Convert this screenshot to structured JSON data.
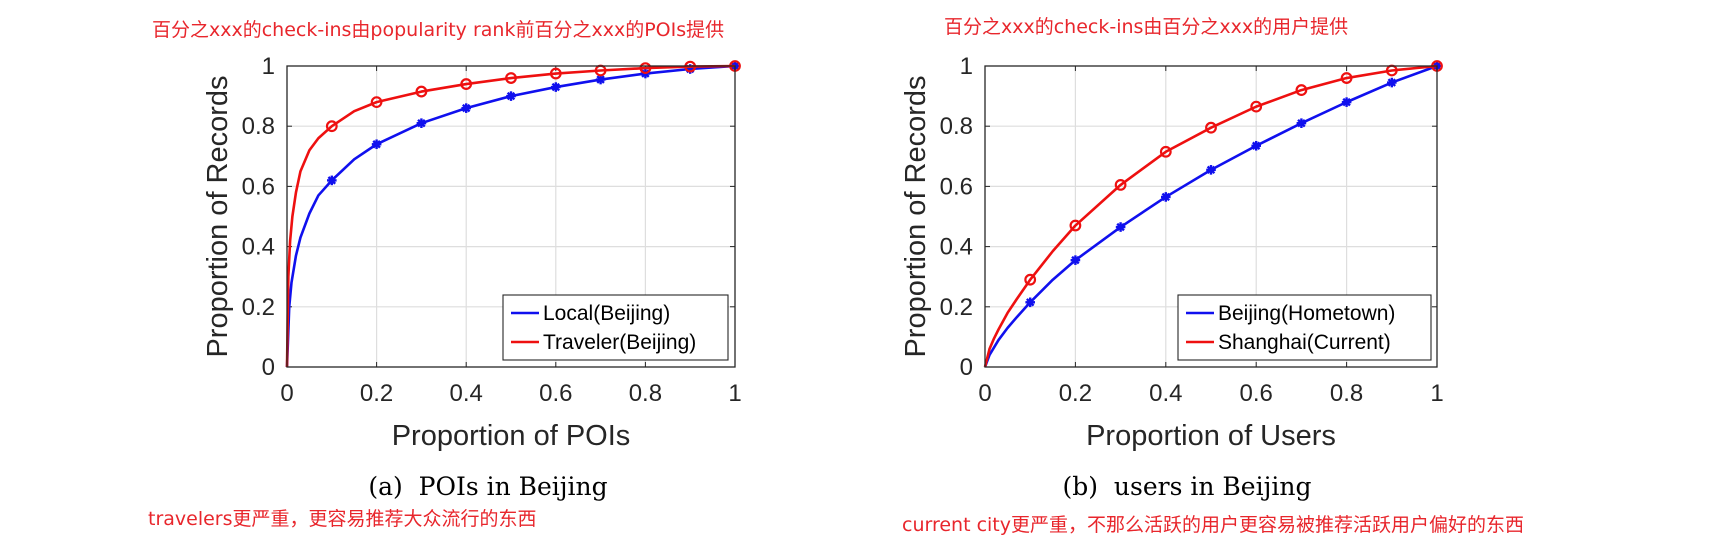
{
  "annotations": {
    "a_top": "百分之xxx的check-ins由popularity rank前百分之xxx的POIs提供",
    "a_bottom": "travelers更严重，更容易推荐大众流行的东西",
    "b_top": "百分之xxx的check-ins由百分之xxx的用户提供",
    "b_bottom": "current city更严重，不那么活跃的用户更容易被推荐活跃用户偏好的东西"
  },
  "chart_data": [
    {
      "type": "line",
      "caption": "(a)  POIs in Beijing",
      "xlabel": "Proportion of POIs",
      "ylabel": "Proportion of Records",
      "xlim": [
        0,
        1
      ],
      "ylim": [
        0,
        1
      ],
      "xticks": [
        0,
        0.2,
        0.4,
        0.6,
        0.8,
        1
      ],
      "yticks": [
        0,
        0.2,
        0.4,
        0.6,
        0.8,
        1
      ],
      "xtick_labels": [
        "0",
        "0.2",
        "0.4",
        "0.6",
        "0.8",
        "1"
      ],
      "ytick_labels": [
        "0",
        "0.2",
        "0.4",
        "0.6",
        "0.8",
        "1"
      ],
      "grid": true,
      "legend_position": "bottom-right",
      "series": [
        {
          "name": "Local(Beijing)",
          "color": "#1010ee",
          "marker": "asterisk",
          "x": [
            0,
            0.005,
            0.01,
            0.02,
            0.03,
            0.05,
            0.07,
            0.1,
            0.15,
            0.2,
            0.3,
            0.4,
            0.5,
            0.6,
            0.7,
            0.8,
            0.9,
            1.0
          ],
          "y": [
            0,
            0.2,
            0.28,
            0.37,
            0.43,
            0.51,
            0.57,
            0.62,
            0.69,
            0.74,
            0.81,
            0.86,
            0.9,
            0.93,
            0.955,
            0.975,
            0.99,
            1.0
          ],
          "marker_x": [
            0.1,
            0.2,
            0.3,
            0.4,
            0.5,
            0.6,
            0.7,
            0.8,
            0.9,
            1.0
          ]
        },
        {
          "name": "Traveler(Beijing)",
          "color": "#ee1010",
          "marker": "circle",
          "x": [
            0,
            0.003,
            0.007,
            0.012,
            0.02,
            0.03,
            0.05,
            0.07,
            0.1,
            0.15,
            0.2,
            0.3,
            0.4,
            0.5,
            0.6,
            0.7,
            0.8,
            0.9,
            1.0
          ],
          "y": [
            0,
            0.3,
            0.42,
            0.5,
            0.58,
            0.65,
            0.72,
            0.76,
            0.8,
            0.85,
            0.88,
            0.915,
            0.94,
            0.96,
            0.975,
            0.985,
            0.993,
            0.998,
            1.0
          ],
          "marker_x": [
            0.1,
            0.2,
            0.3,
            0.4,
            0.5,
            0.6,
            0.7,
            0.8,
            0.9,
            1.0
          ]
        }
      ]
    },
    {
      "type": "line",
      "caption": "(b)  users in Beijing",
      "xlabel": "Proportion of Users",
      "ylabel": "Proportion of Records",
      "xlim": [
        0,
        1
      ],
      "ylim": [
        0,
        1
      ],
      "xticks": [
        0,
        0.2,
        0.4,
        0.6,
        0.8,
        1
      ],
      "yticks": [
        0,
        0.2,
        0.4,
        0.6,
        0.8,
        1
      ],
      "xtick_labels": [
        "0",
        "0.2",
        "0.4",
        "0.6",
        "0.8",
        "1"
      ],
      "ytick_labels": [
        "0",
        "0.2",
        "0.4",
        "0.6",
        "0.8",
        "1"
      ],
      "grid": true,
      "legend_position": "bottom-right",
      "series": [
        {
          "name": "Beijing(Hometown)",
          "color": "#1010ee",
          "marker": "asterisk",
          "x": [
            0,
            0.01,
            0.02,
            0.03,
            0.05,
            0.07,
            0.1,
            0.15,
            0.2,
            0.3,
            0.4,
            0.5,
            0.6,
            0.7,
            0.8,
            0.9,
            1.0
          ],
          "y": [
            0,
            0.04,
            0.065,
            0.09,
            0.13,
            0.165,
            0.215,
            0.29,
            0.355,
            0.465,
            0.565,
            0.655,
            0.735,
            0.81,
            0.88,
            0.945,
            1.0
          ],
          "marker_x": [
            0.1,
            0.2,
            0.3,
            0.4,
            0.5,
            0.6,
            0.7,
            0.8,
            0.9,
            1.0
          ]
        },
        {
          "name": "Shanghai(Current)",
          "color": "#ee1010",
          "marker": "circle",
          "x": [
            0,
            0.01,
            0.02,
            0.03,
            0.05,
            0.07,
            0.1,
            0.15,
            0.2,
            0.3,
            0.4,
            0.5,
            0.6,
            0.7,
            0.8,
            0.9,
            1.0
          ],
          "y": [
            0,
            0.06,
            0.095,
            0.125,
            0.18,
            0.225,
            0.29,
            0.385,
            0.47,
            0.605,
            0.715,
            0.795,
            0.865,
            0.92,
            0.96,
            0.985,
            1.0
          ],
          "marker_x": [
            0.1,
            0.2,
            0.3,
            0.4,
            0.5,
            0.6,
            0.7,
            0.8,
            0.9,
            1.0
          ]
        }
      ]
    }
  ]
}
